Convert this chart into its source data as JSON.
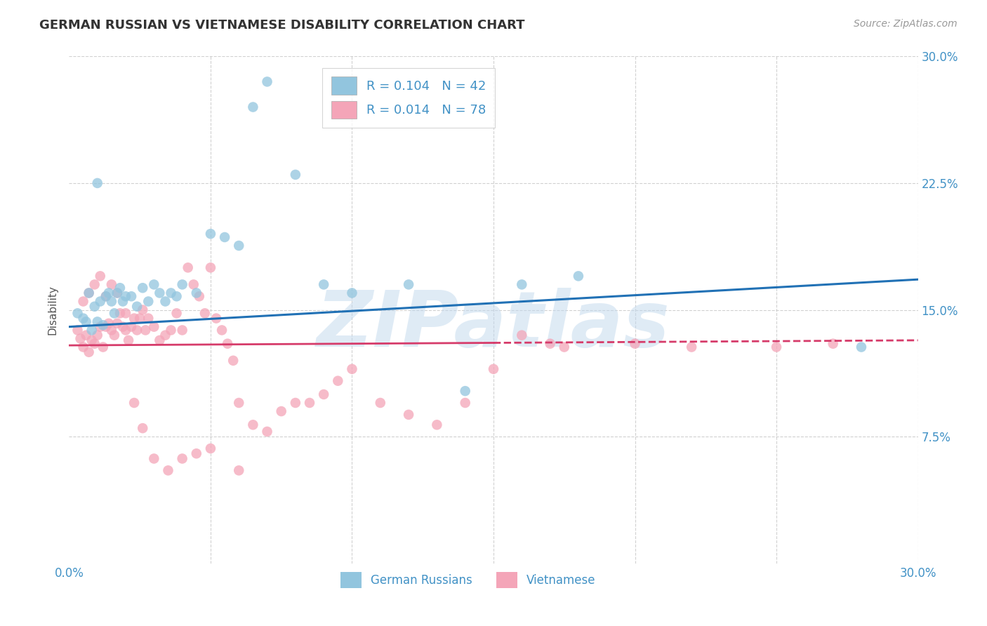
{
  "title": "GERMAN RUSSIAN VS VIETNAMESE DISABILITY CORRELATION CHART",
  "source": "Source: ZipAtlas.com",
  "ylabel": "Disability",
  "watermark": "ZIPatlas",
  "xlim": [
    0.0,
    0.3
  ],
  "ylim": [
    0.0,
    0.3
  ],
  "blue_color": "#92c5de",
  "pink_color": "#f4a5b8",
  "trend_blue": "#2171b5",
  "trend_pink": "#d63b6a",
  "axis_color": "#4292c6",
  "background": "#ffffff",
  "legend_label1": "R = 0.104   N = 42",
  "legend_label2": "R = 0.014   N = 78",
  "german_russian_x": [
    0.003,
    0.005,
    0.006,
    0.007,
    0.008,
    0.009,
    0.01,
    0.011,
    0.012,
    0.013,
    0.014,
    0.015,
    0.016,
    0.017,
    0.018,
    0.019,
    0.02,
    0.022,
    0.024,
    0.026,
    0.028,
    0.03,
    0.032,
    0.034,
    0.036,
    0.038,
    0.04,
    0.045,
    0.05,
    0.055,
    0.06,
    0.065,
    0.07,
    0.08,
    0.09,
    0.1,
    0.12,
    0.14,
    0.16,
    0.18,
    0.28,
    0.01
  ],
  "german_russian_y": [
    0.148,
    0.145,
    0.143,
    0.16,
    0.138,
    0.152,
    0.143,
    0.155,
    0.141,
    0.158,
    0.16,
    0.155,
    0.148,
    0.16,
    0.163,
    0.155,
    0.158,
    0.158,
    0.152,
    0.163,
    0.155,
    0.165,
    0.16,
    0.155,
    0.16,
    0.158,
    0.165,
    0.16,
    0.195,
    0.193,
    0.188,
    0.27,
    0.285,
    0.23,
    0.165,
    0.16,
    0.165,
    0.102,
    0.165,
    0.17,
    0.128,
    0.225
  ],
  "vietnamese_x": [
    0.003,
    0.004,
    0.005,
    0.006,
    0.007,
    0.008,
    0.009,
    0.01,
    0.011,
    0.012,
    0.013,
    0.014,
    0.015,
    0.016,
    0.017,
    0.018,
    0.019,
    0.02,
    0.021,
    0.022,
    0.023,
    0.024,
    0.025,
    0.026,
    0.027,
    0.028,
    0.03,
    0.032,
    0.034,
    0.036,
    0.038,
    0.04,
    0.042,
    0.044,
    0.046,
    0.048,
    0.05,
    0.052,
    0.054,
    0.056,
    0.058,
    0.06,
    0.065,
    0.07,
    0.075,
    0.08,
    0.085,
    0.09,
    0.095,
    0.1,
    0.11,
    0.12,
    0.13,
    0.14,
    0.15,
    0.16,
    0.17,
    0.175,
    0.2,
    0.22,
    0.25,
    0.27,
    0.005,
    0.007,
    0.009,
    0.011,
    0.013,
    0.015,
    0.017,
    0.02,
    0.023,
    0.026,
    0.03,
    0.035,
    0.04,
    0.045,
    0.05,
    0.06
  ],
  "vietnamese_y": [
    0.138,
    0.133,
    0.128,
    0.135,
    0.125,
    0.132,
    0.13,
    0.135,
    0.14,
    0.128,
    0.14,
    0.142,
    0.138,
    0.135,
    0.142,
    0.148,
    0.14,
    0.148,
    0.132,
    0.14,
    0.145,
    0.138,
    0.145,
    0.15,
    0.138,
    0.145,
    0.14,
    0.132,
    0.135,
    0.138,
    0.148,
    0.138,
    0.175,
    0.165,
    0.158,
    0.148,
    0.175,
    0.145,
    0.138,
    0.13,
    0.12,
    0.095,
    0.082,
    0.078,
    0.09,
    0.095,
    0.095,
    0.1,
    0.108,
    0.115,
    0.095,
    0.088,
    0.082,
    0.095,
    0.115,
    0.135,
    0.13,
    0.128,
    0.13,
    0.128,
    0.128,
    0.13,
    0.155,
    0.16,
    0.165,
    0.17,
    0.158,
    0.165,
    0.16,
    0.138,
    0.095,
    0.08,
    0.062,
    0.055,
    0.062,
    0.065,
    0.068,
    0.055
  ]
}
